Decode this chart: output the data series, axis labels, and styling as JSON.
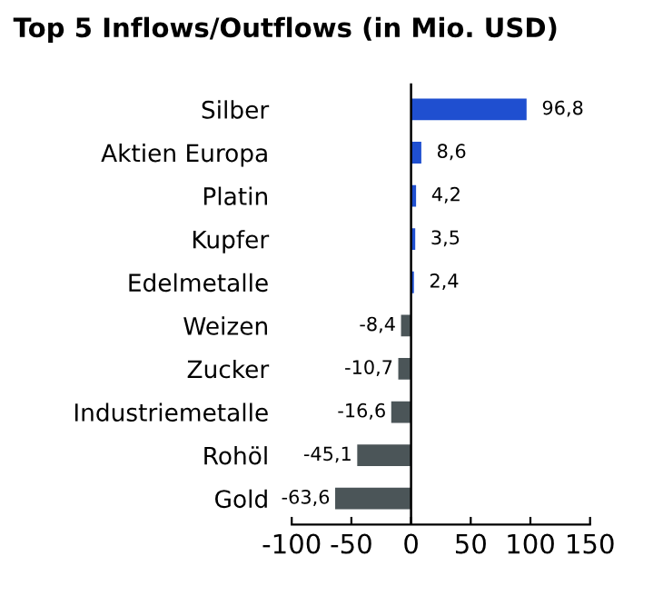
{
  "chart_data": {
    "type": "bar",
    "orientation": "horizontal",
    "title": "Top 5 Inflows/Outflows (in Mio. USD)",
    "categories": [
      "Silber",
      "Aktien Europa",
      "Platin",
      "Kupfer",
      "Edelmetalle",
      "Weizen",
      "Zucker",
      "Industriemetalle",
      "Rohöl",
      "Gold"
    ],
    "values": [
      96.8,
      8.6,
      4.2,
      3.5,
      2.4,
      -8.4,
      -10.7,
      -16.6,
      -45.1,
      -63.6
    ],
    "colors": [
      "#1f4fd0",
      "#1f4fd0",
      "#1f4fd0",
      "#1f4fd0",
      "#1f4fd0",
      "#4b5558",
      "#4b5558",
      "#4b5558",
      "#4b5558",
      "#4b5558"
    ],
    "value_labels": [
      "96,8",
      "8,6",
      "4,2",
      "3,5",
      "2,4",
      "-8,4",
      "-10,7",
      "-16,6",
      "-45,1",
      "-63,6"
    ],
    "xlim": [
      -100,
      150
    ],
    "xticks": [
      -100,
      -50,
      0,
      50,
      100,
      150
    ],
    "ref_lines": [
      {
        "axis": "x",
        "value": 0,
        "color": "#000000"
      }
    ],
    "grid": false,
    "legend": false
  }
}
